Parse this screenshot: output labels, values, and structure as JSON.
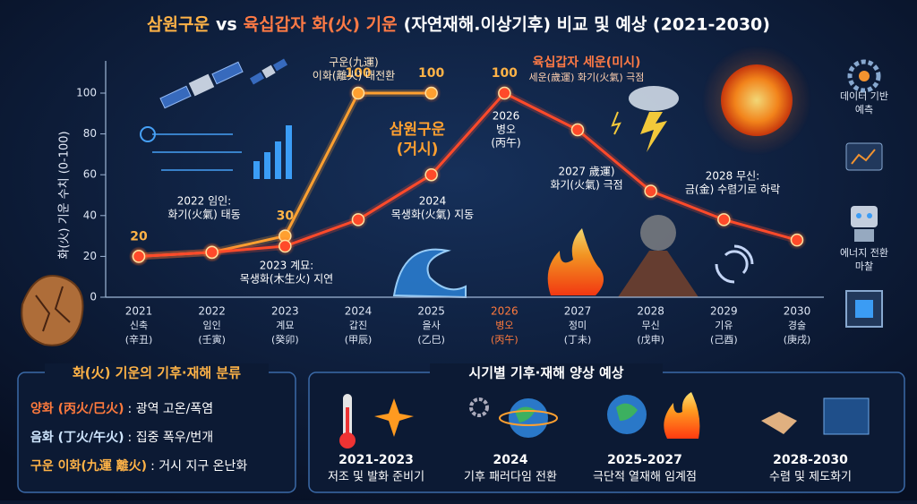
{
  "title_parts": [
    {
      "text": "삼원구운",
      "color": "#ffb347"
    },
    {
      "text": "vs",
      "color": "#ffffff"
    },
    {
      "text": "육십갑자 화(火) 기운",
      "color": "#ff7a45"
    },
    {
      "text": "(자연재해.이상기후) 비교 및 예상 (2021-2030)",
      "color": "#ffffff"
    }
  ],
  "chart_data": {
    "type": "line",
    "y_label": "화(火) 기운 수치 (0-100)",
    "categories": [
      "2021",
      "2022",
      "2023",
      "2024",
      "2025",
      "2026",
      "2027",
      "2028",
      "2029",
      "2030"
    ],
    "category_ganji": [
      "신축",
      "임인",
      "계묘",
      "갑진",
      "을사",
      "병오",
      "정미",
      "무신",
      "기유",
      "경술"
    ],
    "category_hanja": [
      "(辛丑)",
      "(壬寅)",
      "(癸卯)",
      "(甲辰)",
      "(乙巳)",
      "(丙午)",
      "(丁未)",
      "(戊申)",
      "(己酉)",
      "(庚戌)"
    ],
    "highlight_category": 5,
    "ylim": [
      0,
      100
    ],
    "yticks": [
      0,
      20,
      40,
      60,
      80,
      100
    ],
    "series": [
      {
        "name": "삼원구운",
        "subname": "(거시)",
        "color": "#ffa030",
        "values": [
          20,
          22,
          30,
          100,
          100,
          null,
          null,
          null,
          null,
          null
        ],
        "value_labels": [
          "20",
          null,
          "30",
          "100",
          "100",
          null,
          null,
          null,
          null,
          null
        ]
      },
      {
        "name": "육십갑자 세운(미시)",
        "subname": "세운(歲運) 화기(火氣) 극점",
        "color": "#ff4a2a",
        "values": [
          20,
          22,
          25,
          38,
          60,
          100,
          82,
          52,
          38,
          28
        ],
        "value_labels": [
          null,
          null,
          null,
          null,
          null,
          "100",
          null,
          null,
          null,
          null
        ]
      }
    ],
    "annotations": [
      [
        "구운(九運)",
        "이화(離火) 대전환"
      ],
      [
        "2022 임인:",
        "화기(火氣) 태동"
      ],
      [
        "2023 계묘:",
        "목생화(木生火) 지연"
      ],
      [
        "2024",
        "목생화(火氣) 지동"
      ],
      [
        "2026",
        "병오",
        "(丙午)"
      ],
      [
        "2027 歲運)",
        "화기(火氣) 극점"
      ],
      [
        "2028 무신:",
        "금(金) 수렴기로 하락"
      ]
    ]
  },
  "sidebar": [
    [
      "데이터 기반",
      "예측"
    ],
    [
      "에너지 전환",
      "마찰"
    ]
  ],
  "classification": {
    "title": "화(火) 기운의 기후·재해 분류",
    "items": [
      {
        "term": "양화 (丙火/巳火)",
        "desc": ": 광역 고온/폭염",
        "color": "#ff7a3d"
      },
      {
        "term": "음화 (丁火/午火)",
        "desc": ": 집중 폭우/번개",
        "color": "#cfe6ff"
      },
      {
        "term": "구운 이화(九運 離火)",
        "desc": ": 거시 지구 온난화",
        "color": "#ffb347"
      }
    ]
  },
  "outlook": {
    "title": "시기별 기후·재해 양상 예상",
    "items": [
      {
        "period": "2021-2023",
        "desc": "저조 및 발화 준비기"
      },
      {
        "period": "2024",
        "desc": "기후 패러다임 전환"
      },
      {
        "period": "2025-2027",
        "desc": "극단적 열재해 임계점"
      },
      {
        "period": "2028-2030",
        "desc": "수렴 및 제도화기"
      }
    ]
  }
}
